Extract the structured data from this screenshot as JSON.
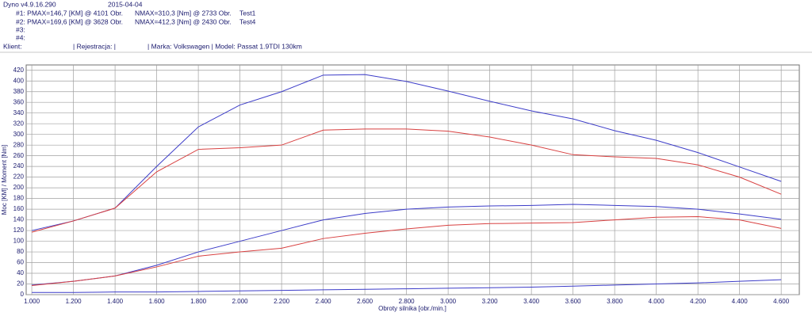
{
  "chart_data": {
    "type": "line",
    "header": {
      "program": "Dyno v4.9.16.290",
      "date": "2015-04-04",
      "runs": [
        {
          "label": "#1: PMAX=146,7 [KM] @ 4101 Obr.",
          "nmax": "NMAX=310,3 [Nm] @ 2733 Obr.",
          "name": "Test1"
        },
        {
          "label": "#2: PMAX=169,6 [KM] @ 3628 Obr.",
          "nmax": "NMAX=412,3 [Nm] @ 2430 Obr.",
          "name": "Test4"
        },
        {
          "label": "#3:"
        },
        {
          "label": "#4:"
        }
      ],
      "client": "Klient:",
      "registration": "| Rejestracja: |",
      "vehicle": "| Marka: Volkswagen | Model: Passat 1.9TDI 130km"
    },
    "x_label": "Obroty silnika [obr./min.]",
    "y_label": "Moc [KM] / Moment [Nm]",
    "x": [
      1000,
      1200,
      1400,
      1600,
      1800,
      2000,
      2200,
      2400,
      2600,
      2800,
      3000,
      3200,
      3400,
      3600,
      3800,
      4000,
      4200,
      4400,
      4600
    ],
    "series": [
      {
        "color": "#3c3cc8",
        "values": [
          120,
          138,
          162,
          240,
          314,
          355,
          380,
          411,
          412,
          399,
          381,
          362,
          344,
          329,
          307,
          289,
          266,
          239,
          212
        ]
      },
      {
        "color": "#d84040",
        "values": [
          117,
          138,
          162,
          230,
          272,
          275,
          280,
          308,
          310,
          310,
          306,
          295,
          280,
          262,
          258,
          255,
          243,
          220,
          188
        ]
      },
      {
        "color": "#3c3cc8",
        "values": [
          18,
          25,
          35,
          55,
          80,
          100,
          120,
          140,
          152,
          160,
          164,
          166,
          167,
          169,
          167,
          165,
          160,
          151,
          141
        ]
      },
      {
        "color": "#d84040",
        "values": [
          17,
          25,
          35,
          52,
          72,
          80,
          87,
          105,
          115,
          123,
          130,
          133,
          134,
          135,
          140,
          145,
          146,
          140,
          124
        ]
      },
      {
        "color": "#3c3cc8",
        "values": [
          4,
          4,
          5,
          5,
          6,
          7,
          8,
          9,
          10,
          11,
          12,
          13,
          14,
          16,
          18,
          20,
          22,
          25,
          28
        ]
      }
    ],
    "xlim": [
      973,
      4687
    ],
    "ylim": [
      0,
      430
    ],
    "xticks": [
      {
        "value": 1000,
        "label": "1.000"
      },
      {
        "value": 1200,
        "label": "1.200"
      },
      {
        "value": 1400,
        "label": "1.400"
      },
      {
        "value": 1600,
        "label": "1.600"
      },
      {
        "value": 1800,
        "label": "1.800"
      },
      {
        "value": 2000,
        "label": "2.000"
      },
      {
        "value": 2200,
        "label": "2.200"
      },
      {
        "value": 2400,
        "label": "2.400"
      },
      {
        "value": 2600,
        "label": "2.600"
      },
      {
        "value": 2800,
        "label": "2.800"
      },
      {
        "value": 3000,
        "label": "3.000"
      },
      {
        "value": 3200,
        "label": "3.200"
      },
      {
        "value": 3400,
        "label": "3.400"
      },
      {
        "value": 3600,
        "label": "3.600"
      },
      {
        "value": 3800,
        "label": "3.800"
      },
      {
        "value": 4000,
        "label": "4.000"
      },
      {
        "value": 4200,
        "label": "4.200"
      },
      {
        "value": 4400,
        "label": "4.400"
      },
      {
        "value": 4600,
        "label": "4.600"
      }
    ],
    "yticks": [
      0,
      20,
      40,
      60,
      80,
      100,
      120,
      140,
      160,
      180,
      200,
      220,
      240,
      260,
      280,
      300,
      320,
      340,
      360,
      380,
      400,
      420
    ],
    "grid": true
  }
}
